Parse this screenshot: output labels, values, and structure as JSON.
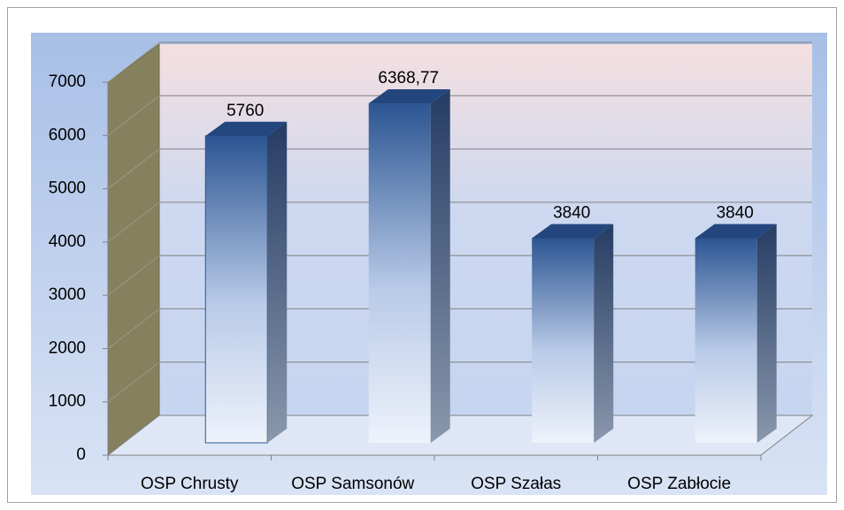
{
  "chart_data": {
    "type": "bar3d",
    "categories": [
      "OSP Chrusty",
      "OSP Samsonów",
      "OSP Szałas",
      "OSP Zabłocie"
    ],
    "values": [
      5760,
      6368.77,
      3840,
      3840
    ],
    "value_labels": [
      "5760",
      "6368,77",
      "3840",
      "3840"
    ],
    "color": "#2f5a96",
    "ylim": [
      0,
      7000
    ],
    "yticks": [
      0,
      1000,
      2000,
      3000,
      4000,
      5000,
      6000,
      7000
    ],
    "grid": true
  }
}
